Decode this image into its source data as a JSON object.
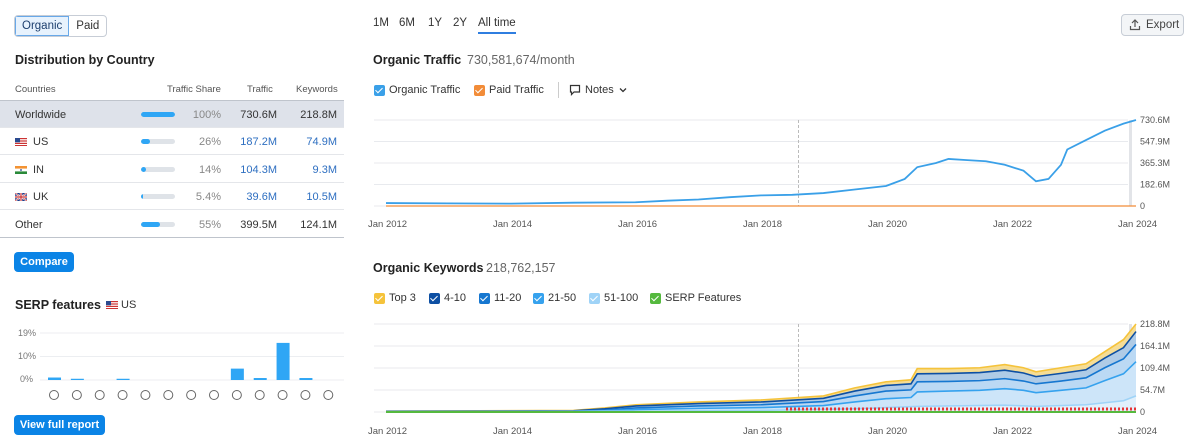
{
  "toggle": {
    "organic": "Organic",
    "paid": "Paid"
  },
  "distribution": {
    "title": "Distribution by Country",
    "headers": {
      "countries": "Countries",
      "share": "Traffic Share",
      "traffic": "Traffic",
      "keywords": "Keywords"
    },
    "rows": [
      {
        "name": "Worldwide",
        "share": "100%",
        "share_value": 1.0,
        "traffic": "730.6M",
        "keywords": "218.8M"
      },
      {
        "name": "US",
        "share": "26%",
        "share_value": 0.26,
        "traffic": "187.2M",
        "keywords": "74.9M"
      },
      {
        "name": "IN",
        "share": "14%",
        "share_value": 0.14,
        "traffic": "104.3M",
        "keywords": "9.3M"
      },
      {
        "name": "UK",
        "share": "5.4%",
        "share_value": 0.054,
        "traffic": "39.6M",
        "keywords": "10.5M"
      },
      {
        "name": "Other",
        "share": "55%",
        "share_value": 0.55,
        "traffic": "399.5M",
        "keywords": "124.1M"
      }
    ],
    "compare_label": "Compare"
  },
  "serp": {
    "title": "SERP features",
    "country": "US",
    "yticks": [
      "19%",
      "10%",
      "0%"
    ],
    "bars": [
      1,
      0.5,
      0,
      0.5,
      0,
      0,
      0,
      0,
      4.6,
      0.8,
      15,
      0.8,
      0,
      0,
      0
    ],
    "icons": [
      "star-outline-icon",
      "link-icon",
      "star-icon",
      "image-icon",
      "play-icon",
      "video-icon",
      "document-icon",
      "comment-icon",
      "location-icon",
      "graduation-icon",
      "copy-icon",
      "briefcase-icon",
      "x-icon"
    ],
    "button_label": "View full report"
  },
  "periods": [
    "1M",
    "6M",
    "1Y",
    "2Y",
    "All time"
  ],
  "export_label": "Export",
  "organic_traffic": {
    "title": "Organic Traffic",
    "value": "730,581,674/month",
    "legend": {
      "organic": "Organic Traffic",
      "paid": "Paid Traffic",
      "notes": "Notes"
    },
    "colors": {
      "organic": "#3aa0e8",
      "paid": "#f28c38"
    }
  },
  "organic_keywords": {
    "title": "Organic Keywords",
    "value": "218,762,157",
    "legend": [
      "Top 3",
      "4-10",
      "11-20",
      "21-50",
      "51-100",
      "SERP Features"
    ],
    "legend_colors": [
      "#f5c33b",
      "#0d4fa3",
      "#1677d0",
      "#36a2ee",
      "#9fd3f7",
      "#55b93e"
    ]
  },
  "chart_data": [
    {
      "type": "line",
      "title": "Organic Traffic",
      "x": [
        "Jan 2012",
        "Jan 2014",
        "Jan 2016",
        "Jan 2018",
        "Jan 2020",
        "Jan 2022",
        "Jan 2024"
      ],
      "yticks": [
        "730.6M",
        "547.9M",
        "365.3M",
        "182.6M",
        "0"
      ],
      "ylim": [
        0,
        730.6
      ],
      "series": [
        {
          "name": "Organic Traffic",
          "points": [
            [
              2012.0,
              25
            ],
            [
              2013.0,
              22
            ],
            [
              2014.0,
              20
            ],
            [
              2015.0,
              28
            ],
            [
              2016.0,
              32
            ],
            [
              2016.5,
              45
            ],
            [
              2017.0,
              55
            ],
            [
              2017.5,
              75
            ],
            [
              2018.0,
              90
            ],
            [
              2018.5,
              95
            ],
            [
              2019.0,
              110
            ],
            [
              2019.5,
              140
            ],
            [
              2020.0,
              170
            ],
            [
              2020.3,
              230
            ],
            [
              2020.5,
              330
            ],
            [
              2020.8,
              365
            ],
            [
              2021.0,
              400
            ],
            [
              2021.3,
              390
            ],
            [
              2021.6,
              380
            ],
            [
              2021.9,
              350
            ],
            [
              2022.2,
              300
            ],
            [
              2022.4,
              210
            ],
            [
              2022.6,
              230
            ],
            [
              2022.8,
              350
            ],
            [
              2022.9,
              480
            ],
            [
              2023.2,
              560
            ],
            [
              2023.5,
              640
            ],
            [
              2023.8,
              700
            ],
            [
              2024.0,
              730.6
            ]
          ]
        },
        {
          "name": "Paid Traffic",
          "points": [
            [
              2012.0,
              0
            ],
            [
              2024.0,
              0
            ]
          ]
        }
      ]
    },
    {
      "type": "area",
      "title": "Organic Keywords",
      "x": [
        "Jan 2012",
        "Jan 2014",
        "Jan 2016",
        "Jan 2018",
        "Jan 2020",
        "Jan 2022",
        "Jan 2024"
      ],
      "yticks": [
        "218.8M",
        "164.1M",
        "109.4M",
        "54.7M",
        "0"
      ],
      "ylim": [
        0,
        218.8
      ],
      "series": [
        {
          "name": "Top 3",
          "points": [
            [
              2012.0,
              2
            ],
            [
              2015.0,
              4
            ],
            [
              2015.5,
              10
            ],
            [
              2016.0,
              18
            ],
            [
              2017.0,
              25
            ],
            [
              2018.0,
              30
            ],
            [
              2019.0,
              40
            ],
            [
              2019.5,
              60
            ],
            [
              2020.0,
              75
            ],
            [
              2020.4,
              80
            ],
            [
              2020.5,
              108
            ],
            [
              2021.0,
              108
            ],
            [
              2021.5,
              110
            ],
            [
              2021.9,
              118
            ],
            [
              2022.2,
              110
            ],
            [
              2022.4,
              100
            ],
            [
              2022.8,
              110
            ],
            [
              2023.2,
              120
            ],
            [
              2023.5,
              150
            ],
            [
              2023.8,
              180
            ],
            [
              2024.0,
              218.8
            ]
          ]
        },
        {
          "name": "4-10",
          "points": [
            [
              2012.0,
              1.5
            ],
            [
              2015.0,
              3
            ],
            [
              2015.5,
              8
            ],
            [
              2016.0,
              15
            ],
            [
              2017.0,
              21
            ],
            [
              2018.0,
              25
            ],
            [
              2019.0,
              34
            ],
            [
              2019.5,
              52
            ],
            [
              2020.0,
              66
            ],
            [
              2020.4,
              70
            ],
            [
              2020.5,
              95
            ],
            [
              2021.0,
              96
            ],
            [
              2021.5,
              98
            ],
            [
              2021.9,
              104
            ],
            [
              2022.2,
              97
            ],
            [
              2022.4,
              88
            ],
            [
              2022.8,
              96
            ],
            [
              2023.2,
              105
            ],
            [
              2023.5,
              134
            ],
            [
              2023.8,
              160
            ],
            [
              2024.0,
              200
            ]
          ]
        },
        {
          "name": "11-20",
          "points": [
            [
              2012.0,
              1
            ],
            [
              2015.0,
              2
            ],
            [
              2015.5,
              5
            ],
            [
              2016.0,
              10
            ],
            [
              2017.0,
              15
            ],
            [
              2018.0,
              18
            ],
            [
              2019.0,
              26
            ],
            [
              2019.5,
              40
            ],
            [
              2020.0,
              52
            ],
            [
              2020.4,
              55
            ],
            [
              2020.5,
              75
            ],
            [
              2021.0,
              76
            ],
            [
              2021.5,
              78
            ],
            [
              2021.9,
              83
            ],
            [
              2022.2,
              77
            ],
            [
              2022.4,
              70
            ],
            [
              2022.8,
              77
            ],
            [
              2023.2,
              85
            ],
            [
              2023.5,
              110
            ],
            [
              2023.8,
              132
            ],
            [
              2024.0,
              168
            ]
          ]
        },
        {
          "name": "21-50",
          "points": [
            [
              2012.0,
              0.5
            ],
            [
              2015.0,
              1
            ],
            [
              2015.5,
              3
            ],
            [
              2016.0,
              6
            ],
            [
              2017.0,
              9
            ],
            [
              2018.0,
              11
            ],
            [
              2019.0,
              16
            ],
            [
              2019.5,
              25
            ],
            [
              2020.0,
              33
            ],
            [
              2020.4,
              36
            ],
            [
              2020.5,
              50
            ],
            [
              2021.0,
              52
            ],
            [
              2021.5,
              54
            ],
            [
              2021.9,
              58
            ],
            [
              2022.2,
              54
            ],
            [
              2022.4,
              48
            ],
            [
              2022.8,
              54
            ],
            [
              2023.2,
              60
            ],
            [
              2023.5,
              78
            ],
            [
              2023.8,
              95
            ],
            [
              2024.0,
              125
            ]
          ]
        },
        {
          "name": "51-100",
          "points": [
            [
              2012.0,
              0.2
            ],
            [
              2016.0,
              2
            ],
            [
              2018.0,
              4
            ],
            [
              2019.5,
              8
            ],
            [
              2020.5,
              14
            ],
            [
              2021.9,
              17
            ],
            [
              2022.4,
              14
            ],
            [
              2023.2,
              18
            ],
            [
              2023.8,
              28
            ],
            [
              2024.0,
              40
            ]
          ]
        }
      ]
    },
    {
      "type": "bar",
      "title": "SERP features",
      "categories": [
        "1",
        "2",
        "3",
        "4",
        "5",
        "6",
        "7",
        "8",
        "9",
        "10",
        "11",
        "12",
        "13",
        "14",
        "15"
      ],
      "values": [
        1,
        0.5,
        0,
        0.5,
        0,
        0,
        0,
        0,
        4.6,
        0.8,
        15,
        0.8,
        0,
        0,
        0
      ],
      "yticks": [
        "19%",
        "10%",
        "0%"
      ],
      "ylim": [
        0,
        19
      ]
    }
  ]
}
